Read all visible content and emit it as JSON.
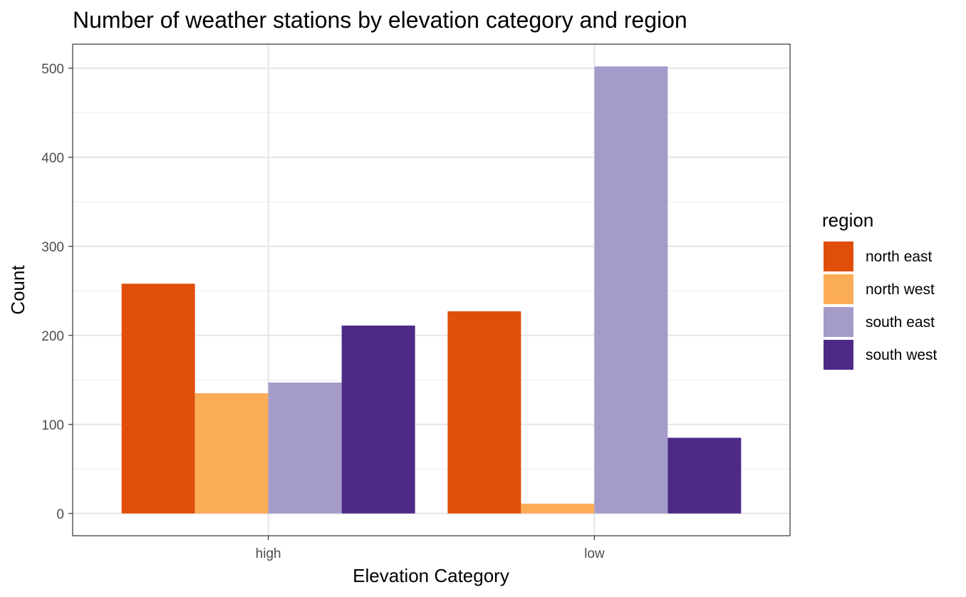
{
  "chart_data": {
    "type": "bar",
    "title": "Number of weather stations by elevation category and region",
    "xlabel": "Elevation Category",
    "ylabel": "Count",
    "categories": [
      "high",
      "low"
    ],
    "series": [
      {
        "name": "north east",
        "color": "#E04F0A",
        "values": [
          258,
          227
        ]
      },
      {
        "name": "north west",
        "color": "#FBAC57",
        "values": [
          135,
          11
        ]
      },
      {
        "name": "south east",
        "color": "#A49BCB",
        "values": [
          147,
          502
        ]
      },
      {
        "name": "south west",
        "color": "#4D2A86",
        "values": [
          211,
          85
        ]
      }
    ],
    "ylim": [
      -25,
      527
    ],
    "yticks": [
      0,
      100,
      200,
      300,
      400,
      500
    ],
    "grid": true,
    "legend": {
      "title": "region",
      "position": "right"
    }
  }
}
